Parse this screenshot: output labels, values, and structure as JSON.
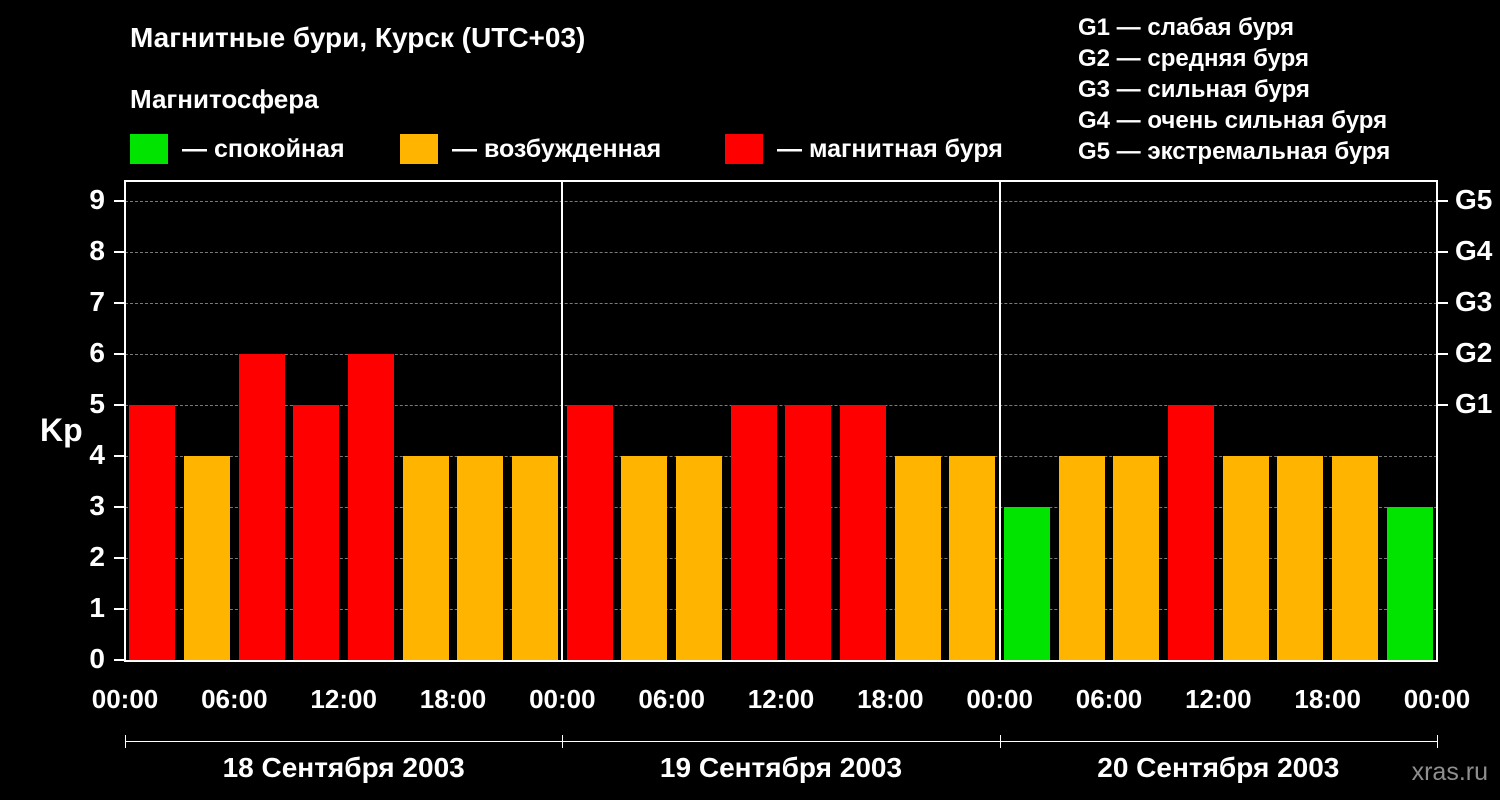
{
  "header": {
    "title": "Магнитные бури, Курск (UTC+03)",
    "magnetosphere_label": "Магнитосфера",
    "legend": [
      {
        "label": "— спокойная",
        "color": "#00e400"
      },
      {
        "label": "— возбужденная",
        "color": "#ffb400"
      },
      {
        "label": "— магнитная буря",
        "color": "#ff0000"
      }
    ],
    "g_scale": [
      "G1 — слабая буря",
      "G2 — средняя буря",
      "G3 — сильная буря",
      "G4 — очень сильная буря",
      "G5 — экстремальная буря"
    ]
  },
  "watermark": "xras.ru",
  "chart_data": {
    "type": "bar",
    "title": "Магнитные бури, Курск (UTC+03)",
    "ylabel": "Kp",
    "ylim": [
      0,
      9
    ],
    "yticks": [
      0,
      1,
      2,
      3,
      4,
      5,
      6,
      7,
      8,
      9
    ],
    "right_axis": [
      {
        "value": 5,
        "label": "G1"
      },
      {
        "value": 6,
        "label": "G2"
      },
      {
        "value": 7,
        "label": "G3"
      },
      {
        "value": 8,
        "label": "G4"
      },
      {
        "value": 9,
        "label": "G5"
      }
    ],
    "interval_hours": 3,
    "x_tick_labels": [
      "00:00",
      "06:00",
      "12:00",
      "18:00"
    ],
    "end_tick_label": "00:00",
    "days": [
      {
        "date": "18 Сентября 2003",
        "values": [
          5,
          4,
          6,
          5,
          6,
          4,
          4,
          4
        ]
      },
      {
        "date": "19 Сентября 2003",
        "values": [
          5,
          4,
          4,
          5,
          5,
          5,
          4,
          4
        ]
      },
      {
        "date": "20 Сентября 2003",
        "values": [
          3,
          4,
          4,
          5,
          4,
          4,
          4,
          3
        ]
      }
    ],
    "color_rules": {
      "quiet_max": 3,
      "active_max": 4,
      "colors": {
        "quiet": "#00e400",
        "active": "#ffb400",
        "storm": "#ff0000"
      }
    },
    "grid": "dashed-horizontal",
    "legend_position": "top"
  }
}
